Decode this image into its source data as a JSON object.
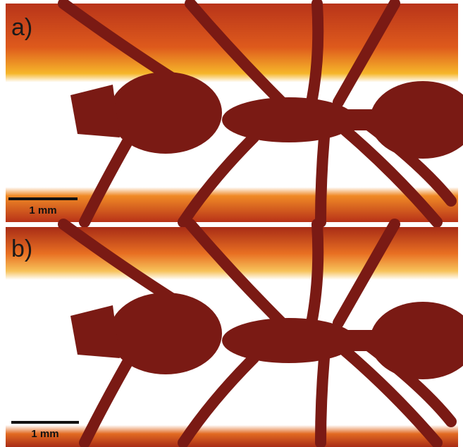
{
  "panels": [
    {
      "label": "a)",
      "scale_bar": "1 mm"
    },
    {
      "label": "b)",
      "scale_bar": "1 mm"
    }
  ]
}
